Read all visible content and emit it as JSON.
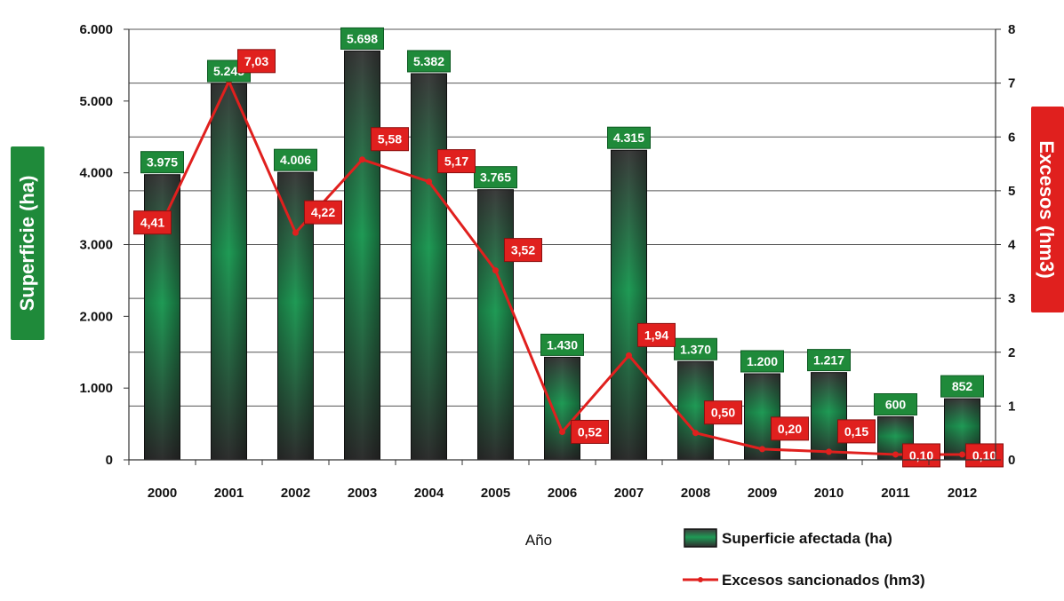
{
  "chart_data": {
    "type": "bar",
    "categories": [
      "2000",
      "2001",
      "2002",
      "2003",
      "2004",
      "2005",
      "2006",
      "2007",
      "2008",
      "2009",
      "2010",
      "2011",
      "2012"
    ],
    "series": [
      {
        "name": "Superficie afectada (ha)",
        "type": "bar",
        "axis": "left",
        "values": [
          3975,
          5245,
          4006,
          5698,
          5382,
          3765,
          1430,
          4315,
          1370,
          1200,
          1217,
          600,
          852
        ],
        "labels": [
          "3.975",
          "5.245",
          "4.006",
          "5.698",
          "5.382",
          "3.765",
          "1.430",
          "4.315",
          "1.370",
          "1.200",
          "1.217",
          "600",
          "852"
        ],
        "color": "#1f8a3a"
      },
      {
        "name": "Excesos sancionados (hm3)",
        "type": "line",
        "axis": "right",
        "values": [
          4.41,
          7.03,
          4.22,
          5.58,
          5.17,
          3.52,
          0.52,
          1.94,
          0.5,
          0.2,
          0.15,
          0.1,
          0.1
        ],
        "labels": [
          "4,41",
          "7,03",
          "4,22",
          "5,58",
          "5,17",
          "3,52",
          "0,52",
          "1,94",
          "0,50",
          "0,20",
          "0,15",
          "0,10",
          "0,10"
        ],
        "color": "#e0201e"
      }
    ],
    "xlabel": "Año",
    "ylabel_left": "Superficie (ha)",
    "ylabel_right": "Excesos (hm3)",
    "ylim_left": [
      0,
      6000
    ],
    "ylim_right": [
      0,
      8
    ],
    "yticks_left": [
      "0",
      "1.000",
      "2.000",
      "3.000",
      "4.000",
      "5.000",
      "6.000"
    ],
    "yticks_right": [
      "0",
      "1",
      "2",
      "3",
      "4",
      "5",
      "6",
      "7",
      "8"
    ],
    "grid": true,
    "legend_position": "bottom-right"
  },
  "colors": {
    "bar_label_bg": "#1f8a3a",
    "line_label_bg": "#e0201e",
    "left_title_bg": "#1f8a3a",
    "right_title_bg": "#e0201e"
  }
}
